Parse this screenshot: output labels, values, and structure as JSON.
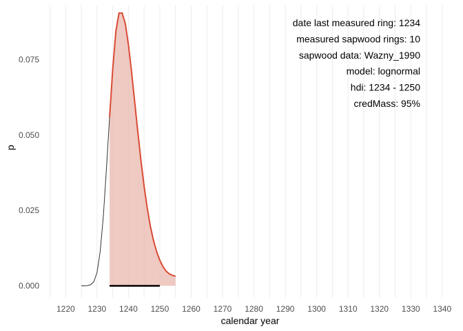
{
  "chart_data": {
    "type": "area",
    "xlabel": "calendar year",
    "ylabel": "p",
    "xlim": [
      1214,
      1344
    ],
    "ylim": [
      -0.004,
      0.093
    ],
    "x_ticks": [
      1220,
      1230,
      1240,
      1250,
      1260,
      1270,
      1280,
      1290,
      1300,
      1310,
      1320,
      1330,
      1340
    ],
    "y_ticks": [
      0.0,
      0.025,
      0.05,
      0.075
    ],
    "y_tick_labels": [
      "0.000",
      "0.025",
      "0.050",
      "0.075"
    ],
    "grid": "vertical-only",
    "annotations": [
      "date last measured ring: 1234",
      "measured sapwood rings: 10",
      "sapwood data: Wazny_1990",
      "model: lognormal",
      "hdi: 1234 - 1250",
      "credMass: 95%"
    ],
    "annotation_placement": "top-right",
    "series": [
      {
        "x": [
          1225,
          1226,
          1227,
          1228,
          1229,
          1230,
          1231,
          1232,
          1233,
          1234,
          1235,
          1236,
          1237,
          1238,
          1239,
          1240,
          1241,
          1242,
          1243,
          1244,
          1245,
          1246,
          1247,
          1248,
          1249,
          1250,
          1251,
          1252,
          1253,
          1254,
          1255
        ],
        "y": [
          0.0,
          0.0,
          0.0001,
          0.0004,
          0.0014,
          0.0045,
          0.0114,
          0.023,
          0.039,
          0.056,
          0.072,
          0.0845,
          0.0905,
          0.0905,
          0.087,
          0.08,
          0.071,
          0.061,
          0.051,
          0.0415,
          0.033,
          0.0258,
          0.0197,
          0.015,
          0.0113,
          0.0085,
          0.0064,
          0.0049,
          0.004,
          0.0035,
          0.0032
        ]
      }
    ],
    "highlight_range": [
      1234,
      1255
    ],
    "hdi": [
      1234,
      1250
    ],
    "colors": {
      "density_line": "#333333",
      "highlight_line": "#d94a34",
      "highlight_fill": "#eab8ad",
      "hdi_bar": "#000000"
    }
  }
}
